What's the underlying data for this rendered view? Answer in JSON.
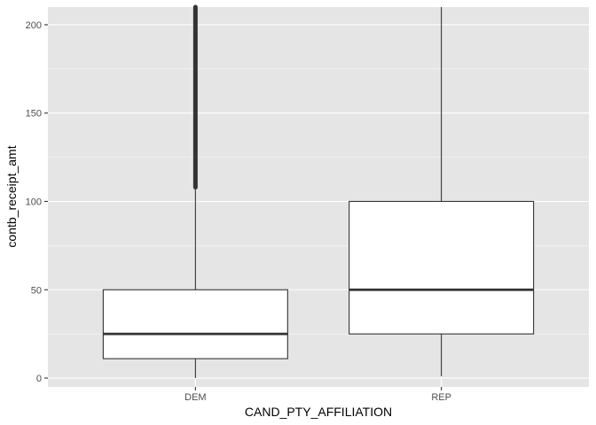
{
  "chart_data": {
    "type": "boxplot",
    "title": "",
    "xlabel": "CAND_PTY_AFFILIATION",
    "ylabel": "contb_receipt_amt",
    "categories": [
      "DEM",
      "REP"
    ],
    "ylim": [
      -5,
      210
    ],
    "yticks": [
      0,
      50,
      100,
      150,
      200
    ],
    "grid": true,
    "background": "#e5e5e5",
    "grid_color": "#ffffff",
    "box_fill": "#ffffff",
    "line_color": "#333333",
    "boxes": [
      {
        "category": "DEM",
        "q1": 11,
        "median": 25,
        "q3": 50,
        "whisker_low": 0,
        "whisker_high": 108,
        "outliers_from": 108,
        "outliers_to": 210
      },
      {
        "category": "REP",
        "q1": 25,
        "median": 50,
        "q3": 100,
        "whisker_low": 1,
        "whisker_high": 210,
        "outliers_from": null,
        "outliers_to": null
      }
    ]
  }
}
